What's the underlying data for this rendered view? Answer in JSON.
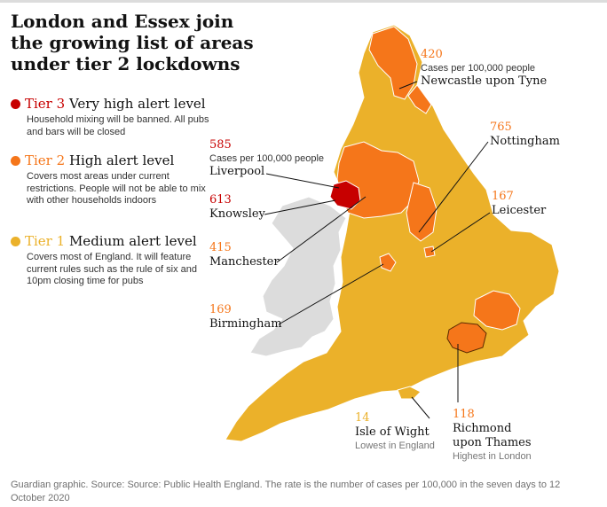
{
  "title": "London and Essex join the growing list of areas under tier 2 lockdowns",
  "colors": {
    "tier3": "#c70000",
    "tier2": "#f5761a",
    "tier1": "#ebb12a",
    "wales": "#dcdcdc",
    "ink": "#121212",
    "grey_text": "#767676"
  },
  "legend": [
    {
      "tier": "Tier 3",
      "level": "Very high alert level",
      "desc": "Household mixing will be banned. All pubs and bars will be closed",
      "color": "#c70000"
    },
    {
      "tier": "Tier 2",
      "level": "High alert level",
      "desc": "Covers most areas under current restrictions. People will not be able to mix with other households indoors",
      "color": "#f5761a"
    },
    {
      "tier": "Tier 1",
      "level": "Medium alert level",
      "desc": "Covers most of England. It will feature current rules such as the rule of six and 10pm closing time for pubs",
      "color": "#ebb12a"
    }
  ],
  "annotations": {
    "newcastle": {
      "value": "420",
      "sub": "Cases per 100,000 people",
      "place": "Newcastle upon Tyne"
    },
    "liverpool": {
      "value": "585",
      "sub": "Cases per 100,000 people",
      "place": "Liverpool"
    },
    "knowsley": {
      "value": "613",
      "place": "Knowsley"
    },
    "manchester": {
      "value": "415",
      "place": "Manchester"
    },
    "birmingham": {
      "value": "169",
      "place": "Birmingham"
    },
    "nottingham": {
      "value": "765",
      "place": "Nottingham"
    },
    "leicester": {
      "value": "167",
      "place": "Leicester"
    },
    "isle_of_wight": {
      "value": "14",
      "place": "Isle of Wight",
      "note": "Lowest in England"
    },
    "richmond": {
      "value": "118",
      "place_line1": "Richmond",
      "place_line2": "upon Thames",
      "note": "Highest in London"
    }
  },
  "footer": "Guardian graphic. Source: Source: Public Health England. The rate is the number of cases per 100,000 in the seven days to 12 October 2020"
}
